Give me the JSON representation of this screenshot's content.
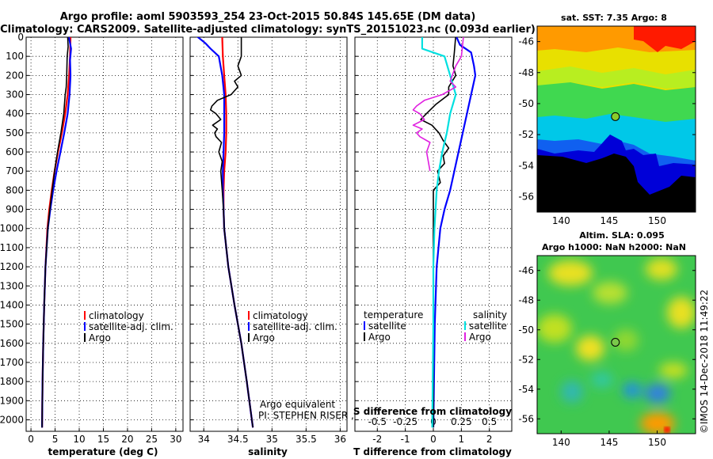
{
  "header": {
    "title_line1": "Argo profile: aoml 5903593_254 23-Oct-2015 50.84S 145.65E (DM data)",
    "title_line2": "Climatology: CARS2009. Satellite-adjusted climatology: synTS_20151023.nc (0.093d earlier)"
  },
  "colors": {
    "climatology": "#ff0000",
    "satellite": "#0000ff",
    "argo": "#000000",
    "satellite_salinity": "#00e0e0",
    "argo_salinity": "#e020e0"
  },
  "depth_ticks": [
    "0",
    "100",
    "200",
    "300",
    "400",
    "500",
    "600",
    "700",
    "800",
    "900",
    "1000",
    "1100",
    "1200",
    "1300",
    "1400",
    "1500",
    "1600",
    "1700",
    "1800",
    "1900",
    "2000"
  ],
  "chart_data": [
    {
      "type": "line",
      "id": "temperature",
      "xlabel": "temperature (deg C)",
      "ylabel": "",
      "xlim": [
        -1,
        31.5
      ],
      "ylim": [
        2060,
        0
      ],
      "xticks": [
        "0",
        "5",
        "10",
        "15",
        "20",
        "25",
        "30"
      ],
      "legend": [
        "climatology",
        "satellite-adj. clim.",
        "Argo"
      ],
      "legend_position": "lower-right",
      "grid": true,
      "series": [
        {
          "name": "climatology",
          "color": "#ff0000",
          "depth": [
            0,
            100,
            200,
            300,
            400,
            500,
            600,
            700,
            800,
            900,
            1000,
            1200,
            1400,
            1600,
            1800,
            2040
          ],
          "values": [
            8.2,
            8.1,
            7.9,
            7.6,
            7.1,
            6.4,
            5.6,
            4.9,
            4.3,
            3.8,
            3.4,
            3.0,
            2.75,
            2.55,
            2.4,
            2.3
          ]
        },
        {
          "name": "satellite-adj. clim.",
          "color": "#0000ff",
          "depth": [
            -10,
            60,
            120,
            200,
            300,
            400,
            500,
            600,
            700,
            800,
            900,
            1000,
            1200,
            1400,
            1600,
            1800,
            2040
          ],
          "values": [
            7.8,
            8.3,
            8.1,
            8.2,
            8.0,
            7.6,
            6.9,
            6.1,
            5.3,
            4.6,
            4.0,
            3.5,
            3.0,
            2.75,
            2.55,
            2.4,
            2.3
          ]
        },
        {
          "name": "Argo",
          "color": "#000000",
          "depth": [
            -10,
            50,
            100,
            200,
            260,
            300,
            400,
            500,
            600,
            700,
            800,
            900,
            1000,
            1200,
            1400,
            1600,
            1800,
            2040
          ],
          "values": [
            7.6,
            7.7,
            7.5,
            7.4,
            7.3,
            7.1,
            6.8,
            6.2,
            5.5,
            4.9,
            4.4,
            3.9,
            3.5,
            3.0,
            2.75,
            2.55,
            2.4,
            2.3
          ]
        }
      ]
    },
    {
      "type": "line",
      "id": "salinity",
      "xlabel": "salinity",
      "ylabel": "",
      "xlim": [
        33.8,
        36.1
      ],
      "ylim": [
        2060,
        0
      ],
      "xticks": [
        "34",
        "34.5",
        "35",
        "35.5",
        "36"
      ],
      "legend": [
        "climatology",
        "satellite-adj. clim.",
        "Argo"
      ],
      "legend_position": "lower-right",
      "grid": true,
      "annotations": [
        "Argo equivalent",
        "PI: STEPHEN RISER , KENNETH JOHNSON"
      ],
      "series": [
        {
          "name": "climatology",
          "color": "#ff0000",
          "depth": [
            0,
            100,
            200,
            300,
            400,
            500,
            600,
            700,
            800,
            900,
            1000,
            1200,
            1400,
            1600,
            1800,
            2040
          ],
          "values": [
            34.27,
            34.28,
            34.3,
            34.32,
            34.33,
            34.33,
            34.32,
            34.3,
            34.29,
            34.29,
            34.3,
            34.36,
            34.45,
            34.55,
            34.63,
            34.72
          ]
        },
        {
          "name": "satellite-adj. clim.",
          "color": "#0000ff",
          "depth": [
            -10,
            30,
            60,
            100,
            200,
            300,
            400,
            500,
            600,
            700,
            800,
            900,
            1000,
            1200,
            1400,
            1600,
            1800,
            2040
          ],
          "values": [
            33.88,
            34.02,
            34.1,
            34.22,
            34.27,
            34.3,
            34.3,
            34.3,
            34.29,
            34.28,
            34.28,
            34.29,
            34.3,
            34.36,
            34.45,
            34.55,
            34.63,
            34.72
          ]
        },
        {
          "name": "Argo",
          "color": "#000000",
          "depth": [
            -10,
            100,
            150,
            200,
            230,
            260,
            300,
            330,
            360,
            380,
            400,
            430,
            460,
            480,
            500,
            520,
            550,
            600,
            650,
            700,
            800,
            900,
            1000,
            1200,
            1400,
            1600,
            1800,
            2040
          ],
          "values": [
            34.55,
            34.55,
            34.5,
            34.55,
            34.45,
            34.5,
            34.4,
            34.2,
            34.12,
            34.1,
            34.18,
            34.25,
            34.13,
            34.2,
            34.16,
            34.18,
            34.26,
            34.22,
            34.27,
            34.25,
            34.27,
            34.29,
            34.3,
            34.36,
            34.45,
            34.55,
            34.63,
            34.72
          ]
        }
      ]
    },
    {
      "type": "line",
      "id": "difference",
      "xlabel": "T difference from climatology",
      "x2label": "S difference from climatology",
      "xlim": [
        -2.8,
        2.8
      ],
      "ylim": [
        2060,
        0
      ],
      "xticks": [
        "-2",
        "-1",
        "0",
        "1",
        "2"
      ],
      "x2ticks": [
        "-0.5",
        "-0.25",
        "0",
        "0.25",
        "0.5"
      ],
      "legend_temperature_heading": "temperature",
      "legend_salinity_heading": "salinity",
      "legend_temperature": [
        "satellite",
        "Argo"
      ],
      "legend_salinity": [
        "satellite",
        "Argo"
      ],
      "grid": true,
      "series": [
        {
          "name": "satellite",
          "group": "temperature",
          "color": "#0000ff",
          "depth": [
            -10,
            40,
            80,
            150,
            200,
            300,
            400,
            500,
            600,
            700,
            800,
            900,
            1000,
            1200,
            1500,
            2040
          ],
          "values": [
            0.8,
            0.95,
            1.35,
            1.45,
            1.5,
            1.35,
            1.2,
            1.05,
            0.9,
            0.75,
            0.6,
            0.4,
            0.25,
            0.12,
            0.05,
            0.0
          ]
        },
        {
          "name": "Argo",
          "group": "temperature",
          "color": "#000000",
          "depth": [
            -10,
            80,
            150,
            200,
            260,
            300,
            350,
            400,
            430,
            460,
            500,
            540,
            580,
            620,
            660,
            700,
            760,
            800,
            1000,
            1200,
            1500,
            2040
          ],
          "values": [
            0.8,
            0.75,
            0.7,
            0.8,
            0.55,
            0.55,
            0.1,
            -0.25,
            -0.45,
            -0.05,
            0.2,
            0.35,
            0.55,
            0.35,
            0.4,
            0.15,
            0.25,
            0.0,
            0.0,
            0.0,
            0.0,
            0.0
          ]
        },
        {
          "name": "satellite",
          "group": "salinity",
          "color": "#00e0e0",
          "depth": [
            -10,
            60,
            100,
            200,
            300,
            400,
            500,
            600,
            700,
            800,
            900,
            1000,
            1200,
            1500,
            2040
          ],
          "values": [
            -0.1,
            -0.1,
            0.1,
            0.15,
            0.2,
            0.15,
            0.12,
            0.08,
            0.05,
            0.03,
            0.02,
            0.01,
            0.0,
            0.0,
            -0.01
          ]
        },
        {
          "name": "Argo",
          "group": "salinity",
          "color": "#e020e0",
          "depth": [
            -10,
            100,
            150,
            230,
            260,
            300,
            330,
            360,
            380,
            400,
            430,
            460,
            480,
            500,
            520,
            550,
            600,
            700
          ],
          "values": [
            0.27,
            0.25,
            0.2,
            0.15,
            0.2,
            0.08,
            -0.08,
            -0.15,
            -0.18,
            -0.12,
            -0.08,
            -0.18,
            -0.1,
            -0.15,
            -0.12,
            -0.03,
            -0.06,
            -0.03
          ]
        }
      ]
    },
    {
      "type": "heatmap",
      "id": "sst-map",
      "title": "sat. SST: 7.35 Argo: 8",
      "xlim": [
        137.5,
        154
      ],
      "ylim": [
        -57,
        -45
      ],
      "xticks": [
        "140",
        "145",
        "150"
      ],
      "yticks": [
        "-46",
        "-48",
        "-50",
        "-52",
        "-54",
        "-56"
      ],
      "marker": {
        "lon": 145.65,
        "lat": -50.84
      }
    },
    {
      "type": "heatmap",
      "id": "sla-map",
      "title": "Altim. SLA: 0.095",
      "subtitle": "Argo h1000: NaN h2000: NaN",
      "xlim": [
        137.5,
        154
      ],
      "ylim": [
        -57,
        -45
      ],
      "xticks": [
        "140",
        "145",
        "150"
      ],
      "yticks": [
        "-46",
        "-48",
        "-50",
        "-52",
        "-54",
        "-56"
      ],
      "marker": {
        "lon": 145.65,
        "lat": -50.84
      }
    }
  ],
  "footer": {
    "stamp": "©IMOS 14-Dec-2018 11:49:22"
  }
}
